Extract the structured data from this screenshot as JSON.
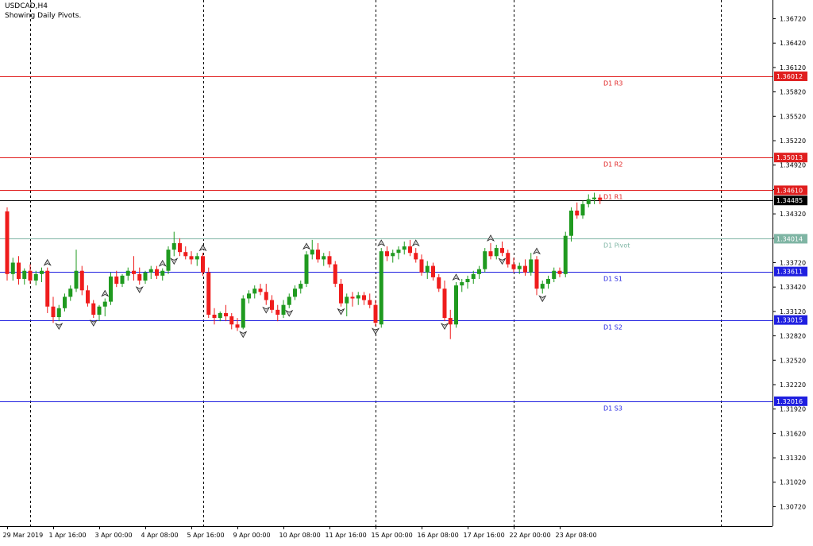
{
  "window": {
    "symbol_title": "USDCAD,H4",
    "indicator_caption": "Showing Daily Pivots."
  },
  "colors": {
    "background": "#ffffff",
    "bull": "#1f9a1f",
    "bear": "#ef1c1c",
    "resistance": "#e01e1e",
    "support": "#1f1fe0",
    "pivot": "#7fb5a4",
    "current_price": "#000000",
    "grid": "#000000"
  },
  "chart_data": {
    "type": "candlestick",
    "symbol": "USDCAD",
    "timeframe": "H4",
    "y_axis": {
      "ylim": [
        1.3048,
        1.3695
      ],
      "ticks": [
        "1.36720",
        "1.36420",
        "1.36120",
        "1.35820",
        "1.35520",
        "1.35220",
        "1.34920",
        "1.34620",
        "1.34320",
        "1.34020",
        "1.33720",
        "1.33420",
        "1.33120",
        "1.32820",
        "1.32520",
        "1.32220",
        "1.31920",
        "1.31620",
        "1.31320",
        "1.31020",
        "1.30720"
      ]
    },
    "x_axis": {
      "labels": [
        "29 Mar 2019",
        "1 Apr 16:00",
        "3 Apr 00:00",
        "4 Apr 08:00",
        "5 Apr 16:00",
        "9 Apr 00:00",
        "10 Apr 08:00",
        "11 Apr 16:00",
        "15 Apr 00:00",
        "16 Apr 08:00",
        "17 Apr 16:00",
        "22 Apr 00:00",
        "23 Apr 08:00"
      ],
      "label_bars": [
        0,
        8,
        16,
        24,
        32,
        40,
        48,
        56,
        64,
        72,
        80,
        88,
        96
      ],
      "day_separator_bars": [
        4,
        34,
        64,
        88,
        124
      ]
    },
    "pivots": [
      {
        "label": "D1 R3",
        "value": "1.36012",
        "kind": "resistance"
      },
      {
        "label": "D1 R2",
        "value": "1.35013",
        "kind": "resistance"
      },
      {
        "label": "D1 R1",
        "value": "1.34610",
        "kind": "resistance"
      },
      {
        "label": "D1 Pivot",
        "value": "1.34014",
        "kind": "pivot"
      },
      {
        "label": "D1 S1",
        "value": "1.33611",
        "kind": "support"
      },
      {
        "label": "D1 S2",
        "value": "1.33015",
        "kind": "support"
      },
      {
        "label": "D1 S3",
        "value": "1.32016",
        "kind": "support"
      }
    ],
    "current_price": "1.34485",
    "candles": [
      [
        1.3435,
        1.344,
        1.335,
        1.3358
      ],
      [
        1.3358,
        1.3378,
        1.335,
        1.3372
      ],
      [
        1.3372,
        1.338,
        1.3345,
        1.3352
      ],
      [
        1.3352,
        1.3365,
        1.3345,
        1.3362
      ],
      [
        1.3362,
        1.337,
        1.3346,
        1.335
      ],
      [
        1.335,
        1.3362,
        1.3344,
        1.3358
      ],
      [
        1.3358,
        1.3366,
        1.3348,
        1.3362
      ],
      [
        1.3362,
        1.3366,
        1.331,
        1.3318
      ],
      [
        1.3318,
        1.333,
        1.3298,
        1.3305
      ],
      [
        1.3305,
        1.332,
        1.33,
        1.3316
      ],
      [
        1.3316,
        1.3334,
        1.3312,
        1.333
      ],
      [
        1.333,
        1.3344,
        1.3325,
        1.334
      ],
      [
        1.334,
        1.3388,
        1.3336,
        1.3362
      ],
      [
        1.3362,
        1.3368,
        1.3332,
        1.3338
      ],
      [
        1.3338,
        1.3344,
        1.3318,
        1.3322
      ],
      [
        1.3322,
        1.3326,
        1.3304,
        1.3308
      ],
      [
        1.3308,
        1.332,
        1.33,
        1.3318
      ],
      [
        1.3318,
        1.3328,
        1.3306,
        1.3324
      ],
      [
        1.3324,
        1.336,
        1.332,
        1.3355
      ],
      [
        1.3355,
        1.3362,
        1.3342,
        1.3346
      ],
      [
        1.3346,
        1.3358,
        1.3342,
        1.3356
      ],
      [
        1.3356,
        1.3366,
        1.335,
        1.3362
      ],
      [
        1.3362,
        1.338,
        1.335,
        1.3358
      ],
      [
        1.3358,
        1.3366,
        1.3345,
        1.335
      ],
      [
        1.335,
        1.3362,
        1.3346,
        1.336
      ],
      [
        1.336,
        1.3368,
        1.3352,
        1.3364
      ],
      [
        1.3364,
        1.3368,
        1.3352,
        1.3356
      ],
      [
        1.3356,
        1.3365,
        1.335,
        1.3362
      ],
      [
        1.3362,
        1.3392,
        1.3358,
        1.3388
      ],
      [
        1.3388,
        1.341,
        1.338,
        1.3396
      ],
      [
        1.3396,
        1.3402,
        1.338,
        1.3385
      ],
      [
        1.3385,
        1.3392,
        1.3376,
        1.338
      ],
      [
        1.338,
        1.3386,
        1.337,
        1.3376
      ],
      [
        1.3376,
        1.3384,
        1.3368,
        1.338
      ],
      [
        1.338,
        1.3384,
        1.3356,
        1.336
      ],
      [
        1.336,
        1.3366,
        1.3304,
        1.3308
      ],
      [
        1.3308,
        1.3316,
        1.3296,
        1.3304
      ],
      [
        1.3304,
        1.3312,
        1.33,
        1.331
      ],
      [
        1.331,
        1.332,
        1.33,
        1.3306
      ],
      [
        1.3306,
        1.331,
        1.329,
        1.3296
      ],
      [
        1.3296,
        1.3304,
        1.3288,
        1.3292
      ],
      [
        1.3292,
        1.3332,
        1.329,
        1.3328
      ],
      [
        1.3328,
        1.3338,
        1.3322,
        1.3334
      ],
      [
        1.3334,
        1.3344,
        1.3328,
        1.334
      ],
      [
        1.334,
        1.3346,
        1.3332,
        1.3336
      ],
      [
        1.3336,
        1.3346,
        1.332,
        1.3326
      ],
      [
        1.3326,
        1.3332,
        1.331,
        1.3314
      ],
      [
        1.3314,
        1.332,
        1.33,
        1.3308
      ],
      [
        1.3308,
        1.3326,
        1.3304,
        1.332
      ],
      [
        1.332,
        1.3334,
        1.3316,
        1.333
      ],
      [
        1.333,
        1.3344,
        1.3326,
        1.334
      ],
      [
        1.334,
        1.335,
        1.3334,
        1.3346
      ],
      [
        1.3346,
        1.3386,
        1.3342,
        1.3382
      ],
      [
        1.3382,
        1.34,
        1.3376,
        1.3388
      ],
      [
        1.3388,
        1.3396,
        1.3372,
        1.3376
      ],
      [
        1.3376,
        1.3384,
        1.3368,
        1.338
      ],
      [
        1.338,
        1.3386,
        1.3366,
        1.337
      ],
      [
        1.337,
        1.3374,
        1.3342,
        1.3346
      ],
      [
        1.3346,
        1.3352,
        1.3318,
        1.3322
      ],
      [
        1.3322,
        1.3334,
        1.3306,
        1.333
      ],
      [
        1.333,
        1.3336,
        1.3318,
        1.3328
      ],
      [
        1.3328,
        1.3336,
        1.332,
        1.3332
      ],
      [
        1.3332,
        1.3336,
        1.332,
        1.3326
      ],
      [
        1.3326,
        1.3334,
        1.3316,
        1.332
      ],
      [
        1.332,
        1.3326,
        1.3294,
        1.3298
      ],
      [
        1.3296,
        1.339,
        1.3292,
        1.3386
      ],
      [
        1.3386,
        1.3392,
        1.3374,
        1.338
      ],
      [
        1.338,
        1.3388,
        1.3372,
        1.3384
      ],
      [
        1.3384,
        1.3392,
        1.3376,
        1.3388
      ],
      [
        1.3388,
        1.3398,
        1.3382,
        1.3392
      ],
      [
        1.3392,
        1.34,
        1.338,
        1.3384
      ],
      [
        1.3384,
        1.339,
        1.3372,
        1.3376
      ],
      [
        1.3376,
        1.3382,
        1.3356,
        1.336
      ],
      [
        1.336,
        1.3374,
        1.3352,
        1.3368
      ],
      [
        1.3368,
        1.3372,
        1.335,
        1.3354
      ],
      [
        1.3354,
        1.3358,
        1.3336,
        1.334
      ],
      [
        1.334,
        1.335,
        1.33,
        1.3304
      ],
      [
        1.3304,
        1.3314,
        1.3278,
        1.3296
      ],
      [
        1.3296,
        1.3348,
        1.3292,
        1.3344
      ],
      [
        1.3344,
        1.3352,
        1.3336,
        1.3348
      ],
      [
        1.3348,
        1.3356,
        1.334,
        1.3352
      ],
      [
        1.3352,
        1.3362,
        1.3346,
        1.3358
      ],
      [
        1.3358,
        1.3368,
        1.3352,
        1.3364
      ],
      [
        1.3364,
        1.339,
        1.336,
        1.3386
      ],
      [
        1.3386,
        1.3396,
        1.3376,
        1.338
      ],
      [
        1.338,
        1.3394,
        1.3376,
        1.339
      ],
      [
        1.339,
        1.3398,
        1.338,
        1.3384
      ],
      [
        1.3384,
        1.3388,
        1.3366,
        1.337
      ],
      [
        1.337,
        1.3378,
        1.336,
        1.3364
      ],
      [
        1.3364,
        1.3372,
        1.3358,
        1.3368
      ],
      [
        1.3368,
        1.3376,
        1.3356,
        1.336
      ],
      [
        1.336,
        1.3384,
        1.3356,
        1.3376
      ],
      [
        1.3376,
        1.338,
        1.3332,
        1.334
      ],
      [
        1.334,
        1.335,
        1.3334,
        1.3346
      ],
      [
        1.3346,
        1.3356,
        1.334,
        1.3352
      ],
      [
        1.3352,
        1.3366,
        1.3348,
        1.3362
      ],
      [
        1.3362,
        1.3366,
        1.3354,
        1.3358
      ],
      [
        1.3358,
        1.341,
        1.3354,
        1.3405
      ],
      [
        1.3405,
        1.344,
        1.3398,
        1.3436
      ],
      [
        1.3436,
        1.3446,
        1.3426,
        1.343
      ],
      [
        1.343,
        1.3448,
        1.3426,
        1.3444
      ],
      [
        1.3444,
        1.3456,
        1.344,
        1.345
      ],
      [
        1.345,
        1.3458,
        1.3444,
        1.3452
      ],
      [
        1.3452,
        1.3456,
        1.3444,
        1.3449
      ]
    ],
    "fractals_up": [
      7,
      17,
      27,
      34,
      52,
      65,
      71,
      78,
      84,
      92
    ],
    "fractals_down": [
      9,
      15,
      23,
      29,
      41,
      45,
      49,
      58,
      64,
      76,
      86,
      93
    ]
  }
}
